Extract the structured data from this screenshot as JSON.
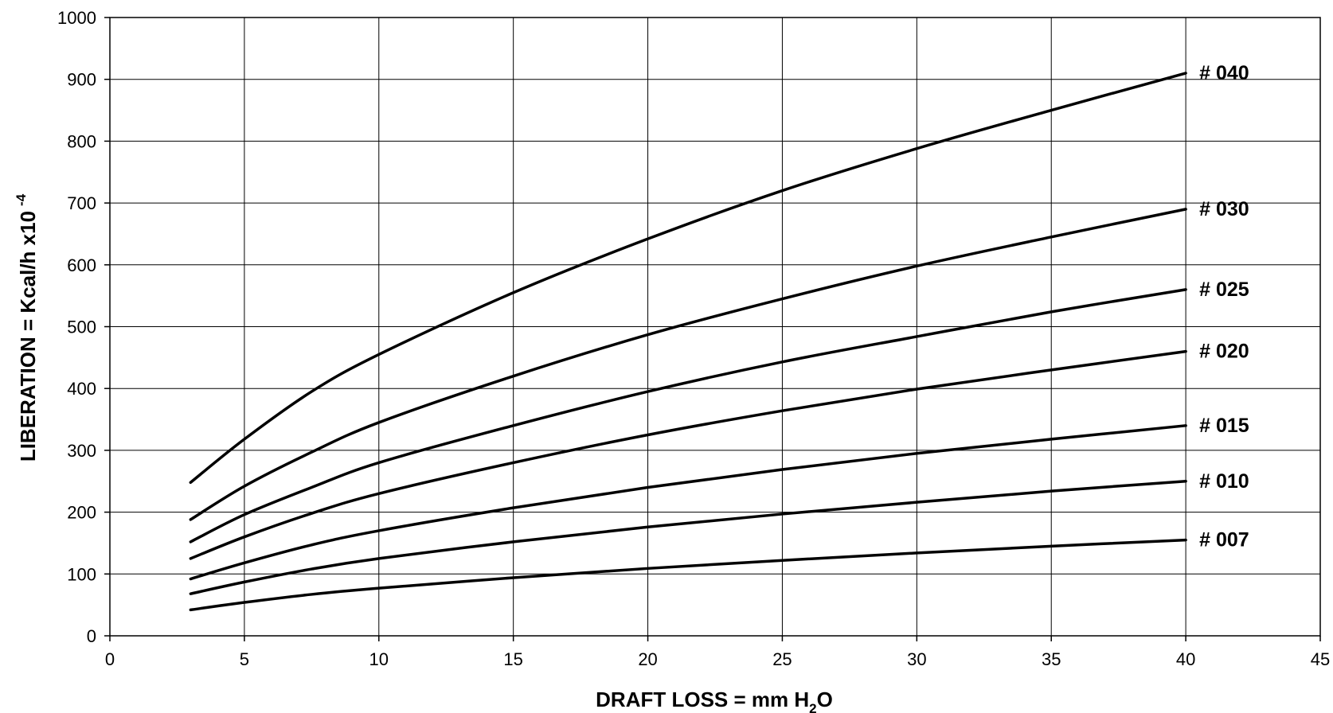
{
  "chart_data": {
    "type": "line",
    "title": "",
    "xlabel": {
      "main": "DRAFT LOSS = mm H",
      "subscript": "2",
      "suffix": "O"
    },
    "ylabel": {
      "main": "LIBERATION = Kcal/h x10",
      "superscript": "-4"
    },
    "xlim": [
      0,
      45
    ],
    "ylim": [
      0,
      1000
    ],
    "xticks": [
      0,
      5,
      10,
      15,
      20,
      25,
      30,
      35,
      40,
      45
    ],
    "yticks": [
      0,
      100,
      200,
      300,
      400,
      500,
      600,
      700,
      800,
      900,
      1000
    ],
    "grid": true,
    "legend": "inline labels at right end of each curve",
    "line_color": "#000000",
    "x": [
      3,
      5,
      7.5,
      10,
      15,
      20,
      25,
      30,
      35,
      40
    ],
    "series": [
      {
        "name": "# 040",
        "values": [
          248,
          318,
          395,
          455,
          555,
          642,
          720,
          788,
          850,
          910
        ]
      },
      {
        "name": "# 030",
        "values": [
          188,
          242,
          297,
          345,
          420,
          487,
          545,
          598,
          645,
          690
        ]
      },
      {
        "name": "# 025",
        "values": [
          152,
          196,
          240,
          280,
          340,
          395,
          443,
          484,
          524,
          560
        ]
      },
      {
        "name": "# 020",
        "values": [
          125,
          160,
          198,
          230,
          280,
          325,
          364,
          399,
          430,
          460
        ]
      },
      {
        "name": "# 015",
        "values": [
          92,
          118,
          147,
          170,
          207,
          240,
          269,
          295,
          318,
          340
        ]
      },
      {
        "name": "# 010",
        "values": [
          68,
          87,
          108,
          125,
          152,
          176,
          197,
          216,
          234,
          250
        ]
      },
      {
        "name": "# 007",
        "values": [
          42,
          54,
          67,
          77,
          94,
          109,
          122,
          134,
          145,
          155
        ]
      }
    ]
  }
}
